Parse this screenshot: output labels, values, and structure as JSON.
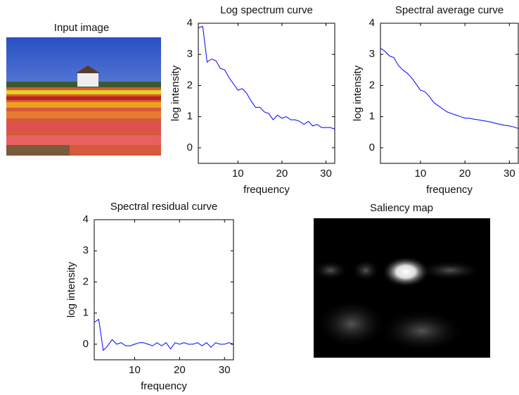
{
  "images": [
    {
      "title": "Input image"
    },
    {
      "title": "Saliency map"
    }
  ],
  "chart_data": [
    {
      "type": "line",
      "title": "Log spectrum curve",
      "x_label": "frequency",
      "y_label": "log intensity",
      "x": [
        1,
        2,
        3,
        4,
        5,
        6,
        7,
        8,
        9,
        10,
        11,
        12,
        13,
        14,
        15,
        16,
        17,
        18,
        19,
        20,
        21,
        22,
        23,
        24,
        25,
        26,
        27,
        28,
        29,
        30,
        31,
        32
      ],
      "series": [
        {
          "color": "#0000ff",
          "values": [
            3.85,
            3.9,
            2.75,
            2.85,
            2.8,
            2.55,
            2.5,
            2.25,
            2.05,
            1.85,
            1.9,
            1.75,
            1.5,
            1.3,
            1.3,
            1.15,
            1.1,
            0.9,
            1.05,
            0.95,
            1.0,
            0.9,
            0.9,
            0.85,
            0.75,
            0.85,
            0.7,
            0.75,
            0.65,
            0.65,
            0.65,
            0.6
          ]
        }
      ],
      "xlim": [
        1,
        32
      ],
      "xticks": [
        10,
        20,
        30
      ],
      "ylim": [
        -0.5,
        4
      ],
      "yticks": [
        0,
        1,
        2,
        3,
        4
      ]
    },
    {
      "type": "line",
      "title": "Spectral average curve",
      "x_label": "frequency",
      "y_label": "log intensity",
      "x": [
        1,
        2,
        3,
        4,
        5,
        6,
        7,
        8,
        9,
        10,
        11,
        12,
        13,
        14,
        15,
        16,
        17,
        18,
        19,
        20,
        21,
        22,
        23,
        24,
        25,
        26,
        27,
        28,
        29,
        30,
        31,
        32
      ],
      "series": [
        {
          "color": "#0000ff",
          "values": [
            3.2,
            3.1,
            2.95,
            2.9,
            2.65,
            2.5,
            2.4,
            2.25,
            2.05,
            1.85,
            1.8,
            1.65,
            1.45,
            1.35,
            1.25,
            1.15,
            1.1,
            1.05,
            1.0,
            0.95,
            0.95,
            0.92,
            0.9,
            0.87,
            0.85,
            0.82,
            0.78,
            0.75,
            0.72,
            0.7,
            0.67,
            0.62
          ]
        }
      ],
      "xlim": [
        1,
        32
      ],
      "xticks": [
        10,
        20,
        30
      ],
      "ylim": [
        -0.5,
        4
      ],
      "yticks": [
        0,
        1,
        2,
        3,
        4
      ]
    },
    {
      "type": "line",
      "title": "Spectral residual curve",
      "x_label": "frequency",
      "y_label": "log intensity",
      "x": [
        1,
        2,
        3,
        4,
        5,
        6,
        7,
        8,
        9,
        10,
        11,
        12,
        13,
        14,
        15,
        16,
        17,
        18,
        19,
        20,
        21,
        22,
        23,
        24,
        25,
        26,
        27,
        28,
        29,
        30,
        31,
        32
      ],
      "series": [
        {
          "color": "#0000ff",
          "values": [
            0.7,
            0.8,
            -0.2,
            -0.05,
            0.15,
            0.0,
            0.05,
            -0.05,
            -0.05,
            0.0,
            0.05,
            0.05,
            0.0,
            -0.05,
            0.05,
            -0.05,
            0.05,
            -0.15,
            0.05,
            0.0,
            0.05,
            0.0,
            0.0,
            0.05,
            -0.05,
            0.05,
            -0.1,
            0.05,
            0.0,
            0.0,
            0.05,
            0.0
          ]
        }
      ],
      "xlim": [
        1,
        32
      ],
      "xticks": [
        10,
        20,
        30
      ],
      "ylim": [
        -0.5,
        4
      ],
      "yticks": [
        0,
        1,
        2,
        3,
        4
      ]
    }
  ]
}
